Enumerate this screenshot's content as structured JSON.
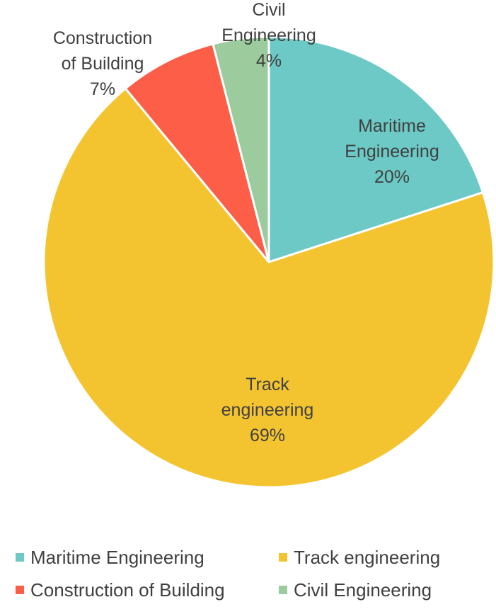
{
  "chart_data": {
    "type": "pie",
    "title": "",
    "start_angle_deg": 0,
    "direction": "clockwise",
    "slices": [
      {
        "label": "Maritime Engineering",
        "label_lines": [
          "Maritime",
          "Engineering"
        ],
        "value": 20,
        "percent_label": "20%",
        "color": "#6cc9c5"
      },
      {
        "label": "Track engineering",
        "label_lines": [
          "Track",
          "engineering"
        ],
        "value": 69,
        "percent_label": "69%",
        "color": "#f4c430"
      },
      {
        "label": "Construction of Building",
        "label_lines": [
          "Construction",
          "of Building"
        ],
        "value": 7,
        "percent_label": "7%",
        "color": "#fc5e48"
      },
      {
        "label": "Civil Engineering",
        "label_lines": [
          "Civil",
          "Engineering"
        ],
        "value": 4,
        "percent_label": "4%",
        "color": "#9ccb9e"
      }
    ],
    "legend": {
      "position": "bottom",
      "rows": [
        [
          "Maritime Engineering",
          "Track engineering"
        ],
        [
          "Construction of Building",
          "Civil Engineering"
        ]
      ]
    }
  }
}
